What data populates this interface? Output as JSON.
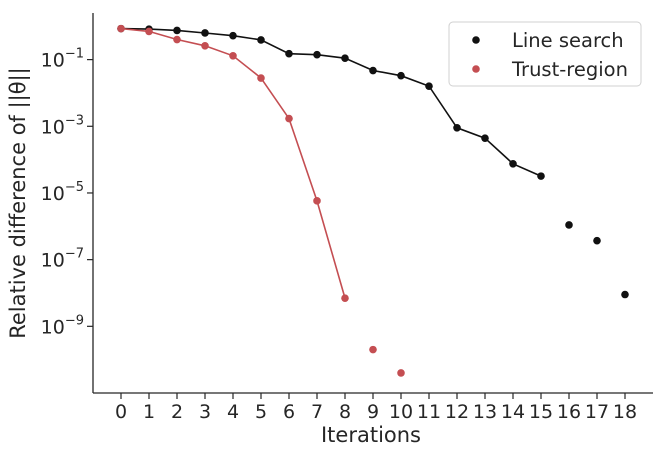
{
  "chart_data": {
    "type": "scatter",
    "xlabel": "Iterations",
    "ylabel": "Relative difference of ||θ||",
    "x_ticks": [
      0,
      1,
      2,
      3,
      4,
      5,
      6,
      7,
      8,
      9,
      10,
      11,
      12,
      13,
      14,
      15,
      16,
      17,
      18
    ],
    "xlim": [
      -1,
      19
    ],
    "yscale": "log",
    "ylim": [
      1e-11,
      2.5
    ],
    "y_ticks": [
      {
        "value": 0.1,
        "mantissa": "10",
        "exp": "−1"
      },
      {
        "value": 0.001,
        "mantissa": "10",
        "exp": "−3"
      },
      {
        "value": 1e-05,
        "mantissa": "10",
        "exp": "−5"
      },
      {
        "value": 1e-07,
        "mantissa": "10",
        "exp": "−7"
      },
      {
        "value": 1e-09,
        "mantissa": "10",
        "exp": "−9"
      }
    ],
    "grid": false,
    "legend_position": "top-right",
    "series": [
      {
        "name": "Line search",
        "color": "#111111",
        "connected_until": 15,
        "x": [
          0,
          1,
          2,
          3,
          4,
          5,
          6,
          7,
          8,
          9,
          10,
          11,
          12,
          13,
          14,
          15,
          16,
          17,
          18
        ],
        "y": [
          0.85,
          0.82,
          0.75,
          0.63,
          0.52,
          0.39,
          0.15,
          0.14,
          0.11,
          0.047,
          0.033,
          0.016,
          0.0009,
          0.00044,
          7.5e-05,
          3.2e-05,
          1.1e-06,
          3.7e-07,
          9e-09
        ]
      },
      {
        "name": "Trust-region",
        "color": "#c44e52",
        "connected_until": 8,
        "x": [
          0,
          1,
          2,
          3,
          4,
          5,
          6,
          7,
          8,
          9,
          10
        ],
        "y": [
          0.85,
          0.7,
          0.4,
          0.26,
          0.13,
          0.028,
          0.0017,
          5.8e-06,
          7e-09,
          2e-10,
          4e-11
        ]
      }
    ]
  }
}
